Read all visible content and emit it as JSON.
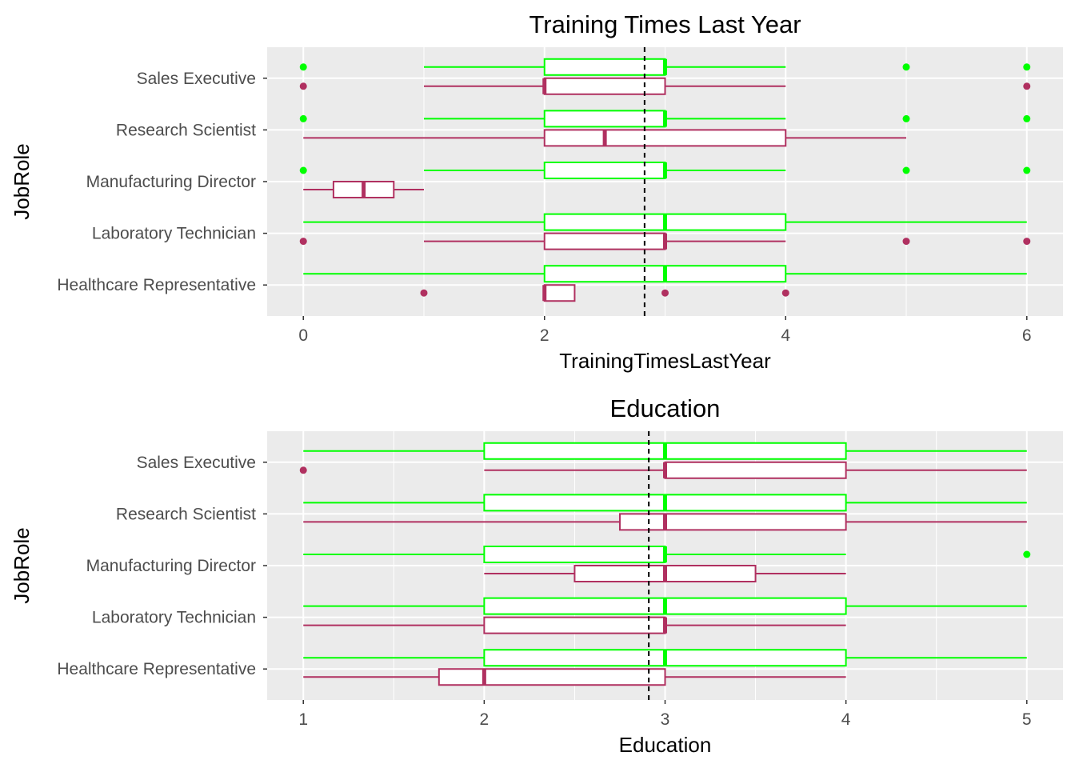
{
  "chart_data": [
    {
      "type": "boxplot",
      "orientation": "horizontal",
      "title": "Training Times Last Year",
      "xlabel": "TrainingTimesLastYear",
      "ylabel": "JobRole",
      "xlim": [
        -0.3,
        6.3
      ],
      "xticks": [
        0,
        2,
        4,
        6
      ],
      "categories": [
        "Healthcare Representative",
        "Laboratory Technician",
        "Manufacturing Director",
        "Research Scientist",
        "Sales Executive"
      ],
      "reference_line": 2.83,
      "grid": true,
      "legend": "none",
      "series": [
        {
          "color": "#00ff00",
          "boxes": [
            {
              "category": "Healthcare Representative",
              "min": 0,
              "q1": 2,
              "median": 3,
              "q3": 4,
              "max": 6,
              "outliers": []
            },
            {
              "category": "Laboratory Technician",
              "min": 0,
              "q1": 2,
              "median": 3,
              "q3": 4,
              "max": 6,
              "outliers": []
            },
            {
              "category": "Manufacturing Director",
              "min": 1,
              "q1": 2,
              "median": 3,
              "q3": 3,
              "max": 4,
              "outliers": [
                0,
                5,
                6
              ]
            },
            {
              "category": "Research Scientist",
              "min": 1,
              "q1": 2,
              "median": 3,
              "q3": 3,
              "max": 4,
              "outliers": [
                0,
                5,
                6
              ]
            },
            {
              "category": "Sales Executive",
              "min": 1,
              "q1": 2,
              "median": 3,
              "q3": 3,
              "max": 4,
              "outliers": [
                0,
                5,
                6
              ]
            }
          ]
        },
        {
          "color": "#b03060",
          "boxes": [
            {
              "category": "Healthcare Representative",
              "min": 2,
              "q1": 2,
              "median": 2,
              "q3": 2.25,
              "max": 2.25,
              "outliers": [
                1,
                3,
                4
              ]
            },
            {
              "category": "Laboratory Technician",
              "min": 1,
              "q1": 2,
              "median": 3,
              "q3": 3,
              "max": 4,
              "outliers": [
                0,
                5,
                6
              ]
            },
            {
              "category": "Manufacturing Director",
              "min": 0,
              "q1": 0.25,
              "median": 0.5,
              "q3": 0.75,
              "max": 1,
              "outliers": []
            },
            {
              "category": "Research Scientist",
              "min": 0,
              "q1": 2,
              "median": 2.5,
              "q3": 4,
              "max": 5,
              "outliers": []
            },
            {
              "category": "Sales Executive",
              "min": 1,
              "q1": 2,
              "median": 2,
              "q3": 3,
              "max": 4,
              "outliers": [
                0,
                6
              ]
            }
          ]
        }
      ]
    },
    {
      "type": "boxplot",
      "orientation": "horizontal",
      "title": "Education",
      "xlabel": "Education",
      "ylabel": "JobRole",
      "xlim": [
        0.8,
        5.2
      ],
      "xticks": [
        1,
        2,
        3,
        4,
        5
      ],
      "categories": [
        "Healthcare Representative",
        "Laboratory Technician",
        "Manufacturing Director",
        "Research Scientist",
        "Sales Executive"
      ],
      "reference_line": 2.91,
      "grid": true,
      "legend": "none",
      "series": [
        {
          "color": "#00ff00",
          "boxes": [
            {
              "category": "Healthcare Representative",
              "min": 1,
              "q1": 2,
              "median": 3,
              "q3": 4,
              "max": 5,
              "outliers": []
            },
            {
              "category": "Laboratory Technician",
              "min": 1,
              "q1": 2,
              "median": 3,
              "q3": 4,
              "max": 5,
              "outliers": []
            },
            {
              "category": "Manufacturing Director",
              "min": 1,
              "q1": 2,
              "median": 3,
              "q3": 3,
              "max": 4,
              "outliers": [
                5
              ]
            },
            {
              "category": "Research Scientist",
              "min": 1,
              "q1": 2,
              "median": 3,
              "q3": 4,
              "max": 5,
              "outliers": []
            },
            {
              "category": "Sales Executive",
              "min": 1,
              "q1": 2,
              "median": 3,
              "q3": 4,
              "max": 5,
              "outliers": []
            }
          ]
        },
        {
          "color": "#b03060",
          "boxes": [
            {
              "category": "Healthcare Representative",
              "min": 1,
              "q1": 1.75,
              "median": 2,
              "q3": 3,
              "max": 4,
              "outliers": []
            },
            {
              "category": "Laboratory Technician",
              "min": 1,
              "q1": 2,
              "median": 3,
              "q3": 3,
              "max": 4,
              "outliers": []
            },
            {
              "category": "Manufacturing Director",
              "min": 2,
              "q1": 2.5,
              "median": 3,
              "q3": 3.5,
              "max": 4,
              "outliers": []
            },
            {
              "category": "Research Scientist",
              "min": 1,
              "q1": 2.75,
              "median": 3,
              "q3": 4,
              "max": 5,
              "outliers": []
            },
            {
              "category": "Sales Executive",
              "min": 2,
              "q1": 3,
              "median": 3,
              "q3": 4,
              "max": 5,
              "outliers": [
                1
              ]
            }
          ]
        }
      ]
    }
  ]
}
